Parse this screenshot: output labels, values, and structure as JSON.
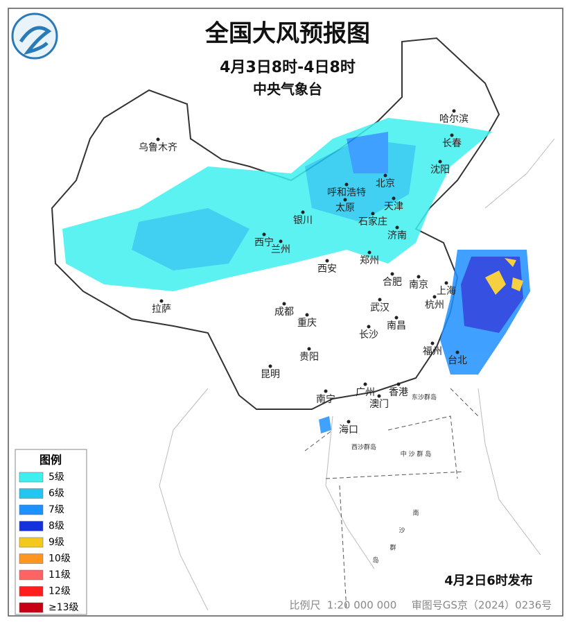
{
  "header": {
    "title": "全国大风预报图",
    "date_range": "4月3日8时-4日8时",
    "issuer": "中央气象台"
  },
  "cities": [
    "乌鲁木齐",
    "哈尔滨",
    "长春",
    "沈阳",
    "北京",
    "呼和浩特",
    "天津",
    "太原",
    "石家庄",
    "银川",
    "济南",
    "西宁",
    "兰州",
    "郑州",
    "西安",
    "合肥",
    "南京",
    "上海",
    "杭州",
    "武汉",
    "成都",
    "拉萨",
    "重庆",
    "南昌",
    "长沙",
    "福州",
    "台北",
    "贵阳",
    "昆明",
    "南宁",
    "广州",
    "香港",
    "澳门",
    "海口"
  ],
  "islands": [
    "东沙群岛",
    "西沙群岛",
    "中 沙 群 岛",
    "南",
    "沙",
    "群",
    "岛"
  ],
  "legend": {
    "title": "图例",
    "items": [
      {
        "label": "5级",
        "color": "#40f0f0"
      },
      {
        "label": "6级",
        "color": "#20c8f0"
      },
      {
        "label": "7级",
        "color": "#1e90ff"
      },
      {
        "label": "8级",
        "color": "#1432dc"
      },
      {
        "label": "9级",
        "color": "#f5c81e"
      },
      {
        "label": "10级",
        "color": "#ff9620"
      },
      {
        "label": "11级",
        "color": "#ff6464"
      },
      {
        "label": "12级",
        "color": "#ff1e1e"
      },
      {
        "label": "≥13级",
        "color": "#c80014"
      }
    ]
  },
  "footer": {
    "scale_label": "比例尺",
    "scale": "1:20 000 000",
    "approval": "审图号GS京（2024）0236号",
    "issued": "4月2日6时发布"
  }
}
